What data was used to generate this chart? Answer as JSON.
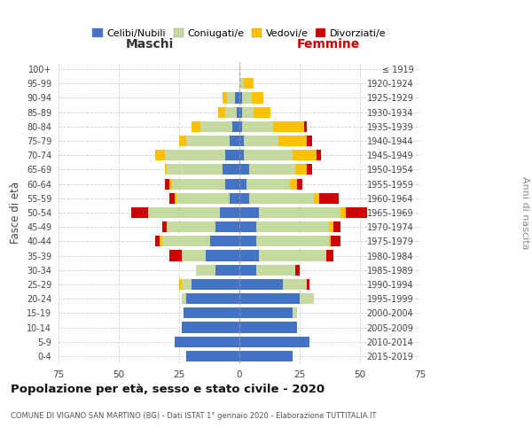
{
  "age_groups": [
    "0-4",
    "5-9",
    "10-14",
    "15-19",
    "20-24",
    "25-29",
    "30-34",
    "35-39",
    "40-44",
    "45-49",
    "50-54",
    "55-59",
    "60-64",
    "65-69",
    "70-74",
    "75-79",
    "80-84",
    "85-89",
    "90-94",
    "95-99",
    "100+"
  ],
  "birth_years": [
    "2015-2019",
    "2010-2014",
    "2005-2009",
    "2000-2004",
    "1995-1999",
    "1990-1994",
    "1985-1989",
    "1980-1984",
    "1975-1979",
    "1970-1974",
    "1965-1969",
    "1960-1964",
    "1955-1959",
    "1950-1954",
    "1945-1949",
    "1940-1944",
    "1935-1939",
    "1930-1934",
    "1925-1929",
    "1920-1924",
    "≤ 1919"
  ],
  "colors": {
    "celibe": "#4472c4",
    "coniugato": "#c5d9a0",
    "vedovo": "#ffc000",
    "divorziato": "#cc0000"
  },
  "maschi": {
    "celibe": [
      22,
      27,
      24,
      23,
      22,
      20,
      10,
      14,
      12,
      10,
      8,
      4,
      6,
      7,
      6,
      4,
      3,
      1,
      2,
      0,
      0
    ],
    "coniugato": [
      0,
      0,
      0,
      0,
      2,
      4,
      8,
      10,
      20,
      20,
      30,
      22,
      22,
      23,
      25,
      18,
      13,
      5,
      3,
      0,
      0
    ],
    "vedovo": [
      0,
      0,
      0,
      0,
      0,
      1,
      0,
      0,
      1,
      0,
      0,
      1,
      1,
      1,
      4,
      3,
      4,
      3,
      2,
      0,
      0
    ],
    "divorziato": [
      0,
      0,
      0,
      0,
      0,
      0,
      0,
      5,
      2,
      2,
      7,
      2,
      2,
      0,
      0,
      0,
      0,
      0,
      0,
      0,
      0
    ]
  },
  "femmine": {
    "nubile": [
      22,
      29,
      24,
      22,
      25,
      18,
      7,
      8,
      7,
      7,
      8,
      4,
      3,
      4,
      2,
      2,
      1,
      1,
      1,
      0,
      0
    ],
    "coniugata": [
      0,
      0,
      0,
      2,
      6,
      10,
      16,
      28,
      30,
      30,
      34,
      27,
      18,
      19,
      20,
      14,
      13,
      5,
      4,
      2,
      0
    ],
    "vedova": [
      0,
      0,
      0,
      0,
      0,
      0,
      0,
      0,
      1,
      2,
      2,
      2,
      3,
      5,
      10,
      12,
      13,
      7,
      5,
      4,
      0
    ],
    "divorziata": [
      0,
      0,
      0,
      0,
      0,
      1,
      2,
      3,
      4,
      3,
      9,
      8,
      2,
      2,
      2,
      2,
      1,
      0,
      0,
      0,
      0
    ]
  },
  "xlim": 75,
  "title": "Popolazione per età, sesso e stato civile - 2020",
  "subtitle": "COMUNE DI VIGANO SAN MARTINO (BG) - Dati ISTAT 1° gennaio 2020 - Elaborazione TUTTITALIA.IT",
  "xlabel_left": "Maschi",
  "xlabel_right": "Femmine",
  "ylabel_left": "Fasce di età",
  "ylabel_right": "Anni di nascita",
  "legend_labels": [
    "Celibi/Nubili",
    "Coniugati/e",
    "Vedovi/e",
    "Divorziati/e"
  ],
  "bg_color": "#ffffff",
  "grid_color": "#cccccc"
}
